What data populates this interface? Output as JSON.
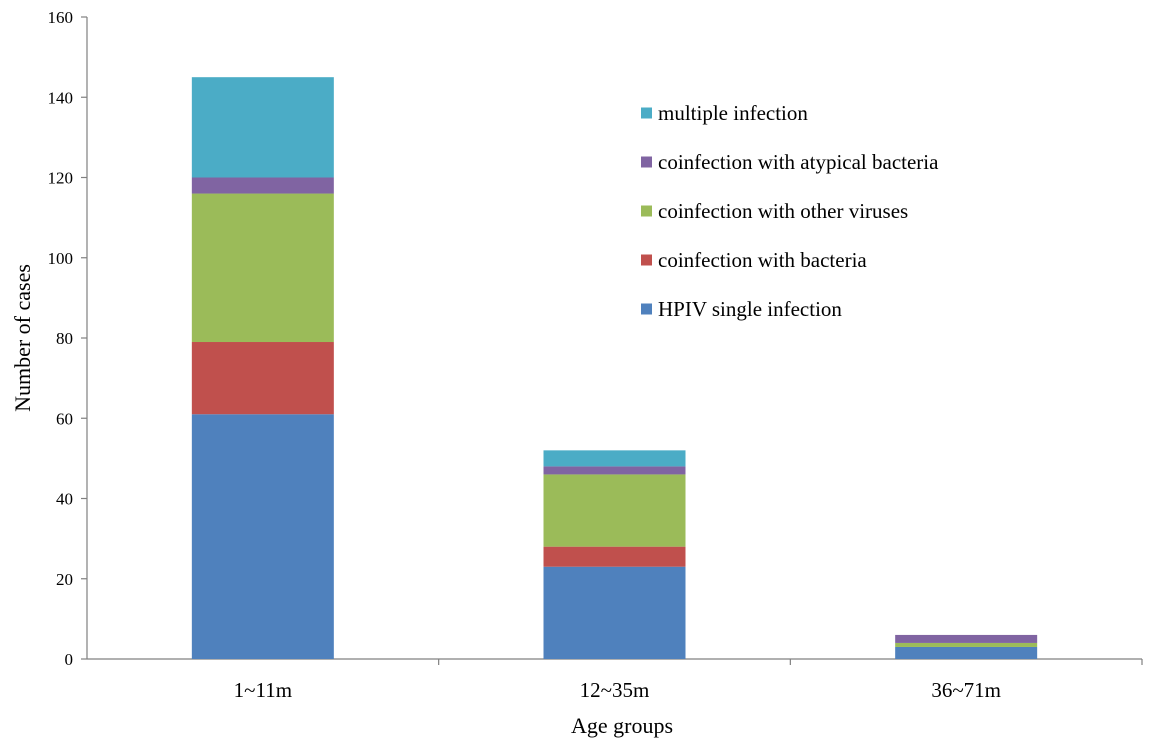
{
  "chart_data": {
    "type": "bar",
    "stacked": true,
    "title": "",
    "xlabel": "Age groups",
    "ylabel": "Number of cases",
    "ylim": [
      0,
      160
    ],
    "yticks": [
      0,
      20,
      40,
      60,
      80,
      100,
      120,
      140,
      160
    ],
    "categories": [
      "1~11m",
      "12~35m",
      "36~71m"
    ],
    "series": [
      {
        "name": "HPIV single infection",
        "color": "#4f81bd",
        "values": [
          61,
          23,
          3
        ]
      },
      {
        "name": "coinfection with bacteria",
        "color": "#c0504d",
        "values": [
          18,
          5,
          0
        ]
      },
      {
        "name": "coinfection with other viruses",
        "color": "#9bbb59",
        "values": [
          37,
          18,
          1
        ]
      },
      {
        "name": "coinfection with atypical bacteria",
        "color": "#8064a2",
        "values": [
          4,
          2,
          2
        ]
      },
      {
        "name": "multiple infection",
        "color": "#4bacc6",
        "values": [
          25,
          4,
          0
        ]
      }
    ],
    "legend_position": "top-right",
    "grid": false
  }
}
